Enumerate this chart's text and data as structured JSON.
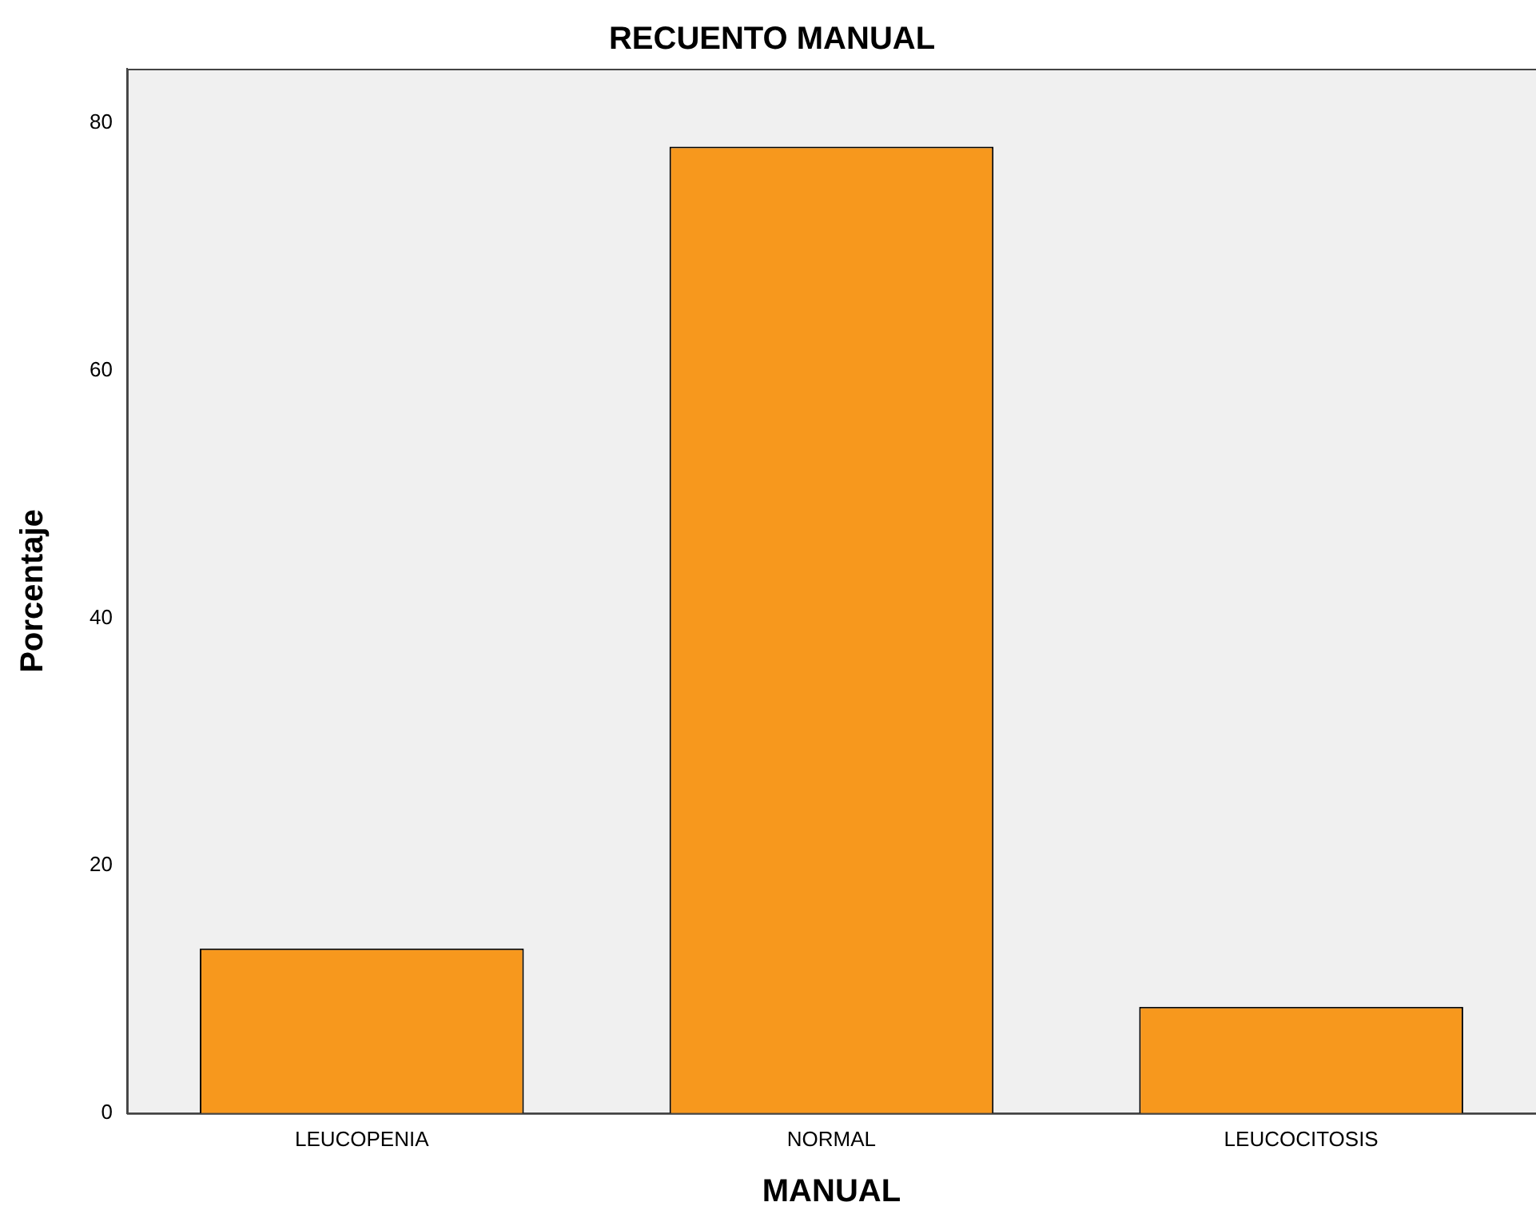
{
  "chart_data": {
    "type": "bar",
    "title": "RECUENTO MANUAL",
    "xlabel": "MANUAL",
    "ylabel": "Porcentaje",
    "categories": [
      "LEUCOPENIA",
      "NORMAL",
      "LEUCOCITOSIS"
    ],
    "values": [
      13.3,
      78.1,
      8.6
    ],
    "color": "#f7981d",
    "ylim": [
      0,
      84.4
    ],
    "yticks": [
      0,
      20,
      40,
      60,
      80
    ],
    "grid": false,
    "legend": false
  }
}
